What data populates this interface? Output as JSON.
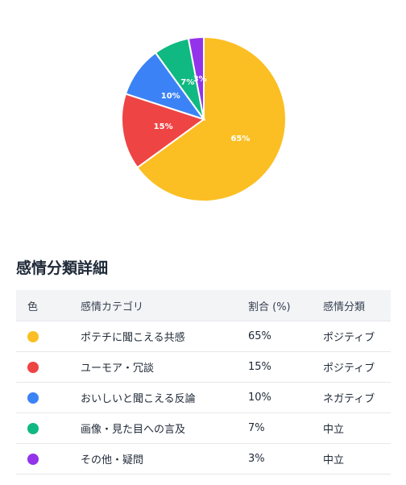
{
  "chart_data": {
    "type": "pie",
    "slices": [
      {
        "label": "ポテチに聞こえる共感",
        "value": 65,
        "display": "65%",
        "color": "#fbbf24"
      },
      {
        "label": "ユーモア・冗談",
        "value": 15,
        "display": "15%",
        "color": "#ef4444"
      },
      {
        "label": "おいしいと聞こえる反論",
        "value": 10,
        "display": "10%",
        "color": "#3b82f6"
      },
      {
        "label": "画像・見た目への言及",
        "value": 7,
        "display": "7%",
        "color": "#10b981"
      },
      {
        "label": "その他・疑問",
        "value": 3,
        "display": "3%",
        "color": "#9333ea"
      }
    ]
  },
  "section": {
    "title": "感情分類詳細"
  },
  "table": {
    "headers": {
      "color": "色",
      "category": "感情カテゴリ",
      "ratio": "割合 (%)",
      "sentiment": "感情分類"
    },
    "rows": [
      {
        "color": "#fbbf24",
        "category": "ポテチに聞こえる共感",
        "ratio": "65%",
        "sentiment": "ポジティブ"
      },
      {
        "color": "#ef4444",
        "category": "ユーモア・冗談",
        "ratio": "15%",
        "sentiment": "ポジティブ"
      },
      {
        "color": "#3b82f6",
        "category": "おいしいと聞こえる反論",
        "ratio": "10%",
        "sentiment": "ネガティブ"
      },
      {
        "color": "#10b981",
        "category": "画像・見た目への言及",
        "ratio": "7%",
        "sentiment": "中立"
      },
      {
        "color": "#9333ea",
        "category": "その他・疑問",
        "ratio": "3%",
        "sentiment": "中立"
      }
    ]
  }
}
